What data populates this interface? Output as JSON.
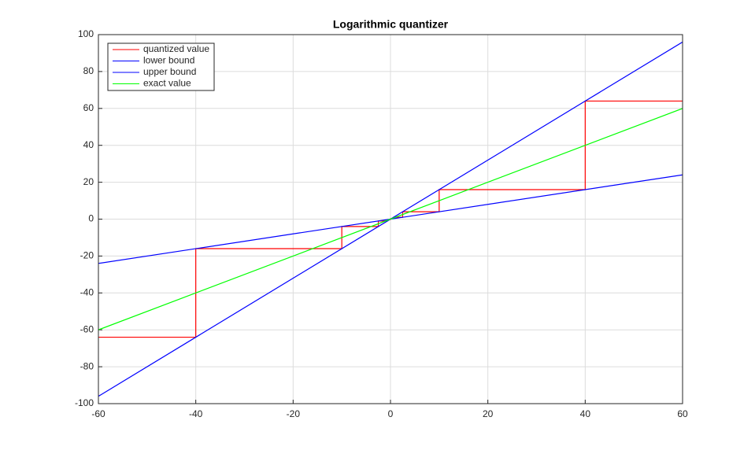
{
  "chart_data": {
    "type": "line",
    "title": "Logarithmic quantizer",
    "xlim": [
      -60,
      60
    ],
    "xticks": [
      -60,
      -40,
      -20,
      0,
      20,
      40,
      60
    ],
    "ylim": [
      -100,
      100
    ],
    "yticks": [
      -100,
      -80,
      -60,
      -40,
      -20,
      0,
      20,
      40,
      60,
      80,
      100
    ],
    "grid": true,
    "legend": "top-left",
    "series": [
      {
        "name": "quantized value",
        "color": "#ff0000",
        "x": [
          -60,
          -40,
          -40,
          -10,
          -10,
          -2.5,
          -2.5,
          -0.625,
          -0.625,
          0,
          0,
          0.625,
          0.625,
          2.5,
          2.5,
          10,
          10,
          40,
          40,
          60
        ],
        "values": [
          -64,
          -64,
          -16,
          -16,
          -4,
          -4,
          -1,
          -1,
          -0.25,
          -0.25,
          0.25,
          0.25,
          1,
          1,
          4,
          4,
          16,
          16,
          64,
          64
        ]
      },
      {
        "name": "lower bound",
        "color": "#0000ff",
        "x": [
          -60,
          60
        ],
        "values": [
          -24,
          24
        ]
      },
      {
        "name": "upper bound",
        "color": "#0000ff",
        "x": [
          -60,
          60
        ],
        "values": [
          -96,
          96
        ]
      },
      {
        "name": "exact value",
        "color": "#00ff00",
        "x": [
          -60,
          60
        ],
        "values": [
          -60,
          60
        ]
      }
    ]
  }
}
